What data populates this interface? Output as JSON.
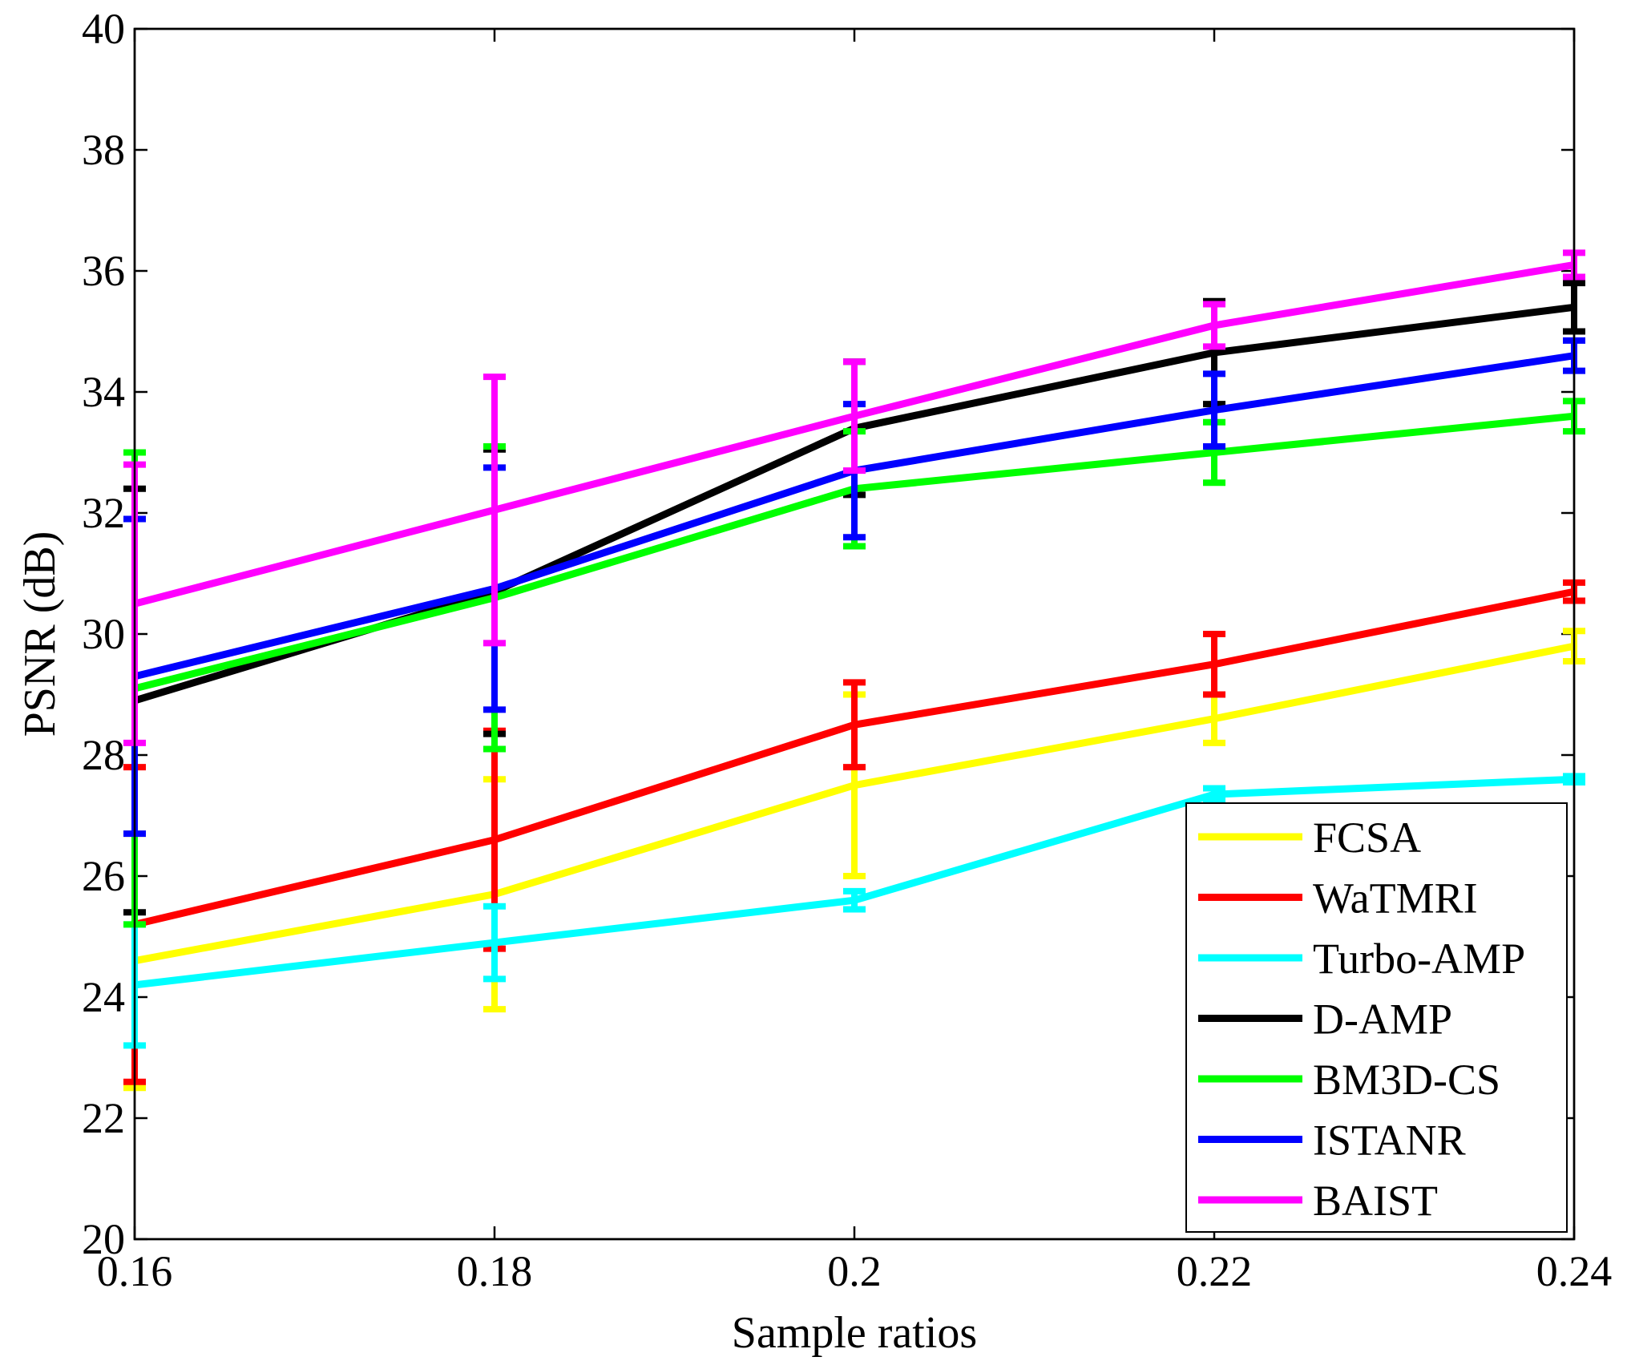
{
  "chart_data": {
    "type": "line",
    "title": "",
    "xlabel": "Sample ratios",
    "ylabel": "PSNR (dB)",
    "xlim": [
      0.16,
      0.24
    ],
    "ylim": [
      20,
      40
    ],
    "x_ticks": [
      0.16,
      0.18,
      0.2,
      0.22,
      0.24
    ],
    "x_tick_labels": [
      "0.16",
      "0.18",
      "0.2",
      "0.22",
      "0.24"
    ],
    "y_ticks": [
      20,
      22,
      24,
      26,
      28,
      30,
      32,
      34,
      36,
      38,
      40
    ],
    "y_tick_labels": [
      "20",
      "22",
      "24",
      "26",
      "28",
      "30",
      "32",
      "34",
      "36",
      "38",
      "40"
    ],
    "grid": false,
    "legend_position": "bottom-right",
    "x": [
      0.16,
      0.18,
      0.2,
      0.22,
      0.24
    ],
    "series": [
      {
        "name": "FCSA",
        "color": "#ffff00",
        "values": [
          24.6,
          25.7,
          27.5,
          28.6,
          29.8
        ],
        "errors": [
          2.1,
          1.9,
          1.5,
          0.4,
          0.25
        ]
      },
      {
        "name": "WaTMRI",
        "color": "#ff0000",
        "values": [
          25.2,
          26.6,
          28.5,
          29.5,
          30.7
        ],
        "errors": [
          2.6,
          1.8,
          0.7,
          0.5,
          0.15
        ]
      },
      {
        "name": "Turbo-AMP",
        "color": "#00ffff",
        "values": [
          24.2,
          24.9,
          25.6,
          27.35,
          27.6
        ],
        "errors": [
          1.0,
          0.6,
          0.15,
          0.1,
          0.05
        ]
      },
      {
        "name": "D-AMP",
        "color": "#000000",
        "values": [
          28.9,
          30.7,
          33.4,
          34.65,
          35.4
        ],
        "errors": [
          3.5,
          2.35,
          1.1,
          0.85,
          0.4
        ]
      },
      {
        "name": "BM3D-CS",
        "color": "#00ff00",
        "values": [
          29.1,
          30.6,
          32.4,
          33.0,
          33.6
        ],
        "errors": [
          3.9,
          2.5,
          0.95,
          0.5,
          0.25
        ]
      },
      {
        "name": "ISTANR",
        "color": "#0000ff",
        "values": [
          29.3,
          30.75,
          32.7,
          33.7,
          34.6
        ],
        "errors": [
          2.6,
          2.0,
          1.1,
          0.6,
          0.25
        ]
      },
      {
        "name": "BAIST",
        "color": "#ff00ff",
        "values": [
          30.5,
          32.05,
          33.6,
          35.1,
          36.1
        ],
        "errors": [
          2.3,
          2.2,
          0.9,
          0.35,
          0.2
        ]
      }
    ]
  }
}
